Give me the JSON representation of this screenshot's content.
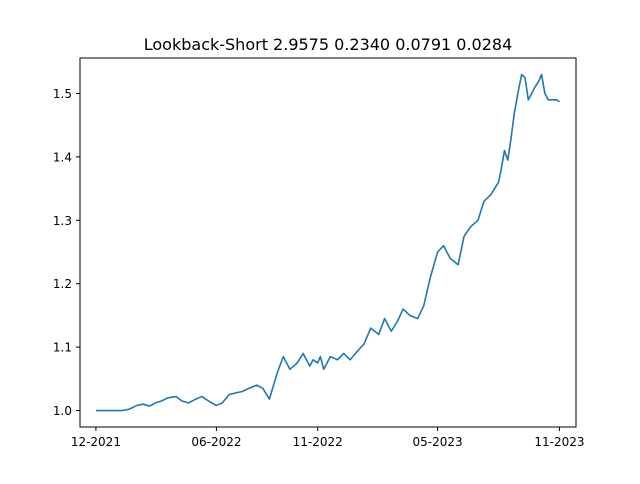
{
  "chart_data": {
    "type": "line",
    "title": "Lookback-Short  2.9575 0.2340 0.0791 0.0284",
    "xlabel": "",
    "ylabel": "",
    "x_ticks": [
      "12-2021",
      "06-2022",
      "11-2022",
      "05-2023",
      "11-2023"
    ],
    "x_tick_dates": [
      "2021-12-01",
      "2022-06-01",
      "2022-11-01",
      "2023-05-01",
      "2023-11-01"
    ],
    "y_ticks": [
      1.0,
      1.1,
      1.2,
      1.3,
      1.4,
      1.5
    ],
    "xlim": [
      "2021-11-07",
      "2023-11-26"
    ],
    "ylim": [
      0.974,
      1.556
    ],
    "grid": false,
    "line_color": "#1f77b4",
    "series": [
      {
        "x": [
          "2021-12-01",
          "2021-12-15",
          "2022-01-01",
          "2022-01-10",
          "2022-01-20",
          "2022-02-01",
          "2022-02-10",
          "2022-02-20",
          "2022-03-01",
          "2022-03-10",
          "2022-03-20",
          "2022-04-01",
          "2022-04-10",
          "2022-04-20",
          "2022-05-01",
          "2022-05-10",
          "2022-05-20",
          "2022-06-01",
          "2022-06-10",
          "2022-06-20",
          "2022-07-01",
          "2022-07-10",
          "2022-07-20",
          "2022-08-01",
          "2022-08-10",
          "2022-08-20",
          "2022-09-01",
          "2022-09-10",
          "2022-09-20",
          "2022-10-01",
          "2022-10-10",
          "2022-10-20",
          "2022-10-25",
          "2022-11-01",
          "2022-11-05",
          "2022-11-10",
          "2022-11-15",
          "2022-11-20",
          "2022-12-01",
          "2022-12-10",
          "2022-12-20",
          "2023-01-01",
          "2023-01-10",
          "2023-01-20",
          "2023-02-01",
          "2023-02-10",
          "2023-02-20",
          "2023-03-01",
          "2023-03-10",
          "2023-03-20",
          "2023-04-01",
          "2023-04-10",
          "2023-04-20",
          "2023-05-01",
          "2023-05-10",
          "2023-05-20",
          "2023-06-01",
          "2023-06-10",
          "2023-06-20",
          "2023-07-01",
          "2023-07-10",
          "2023-07-20",
          "2023-08-01",
          "2023-08-05",
          "2023-08-10",
          "2023-08-15",
          "2023-08-20",
          "2023-08-25",
          "2023-09-01",
          "2023-09-05",
          "2023-09-10",
          "2023-09-15",
          "2023-09-20",
          "2023-09-25",
          "2023-10-01",
          "2023-10-05",
          "2023-10-10",
          "2023-10-15",
          "2023-10-20",
          "2023-10-25",
          "2023-10-28",
          "2023-11-01"
        ],
        "values": [
          1.0,
          1.0,
          1.0,
          1.0,
          1.002,
          1.008,
          1.01,
          1.007,
          1.012,
          1.015,
          1.02,
          1.022,
          1.015,
          1.012,
          1.018,
          1.022,
          1.015,
          1.008,
          1.012,
          1.025,
          1.028,
          1.03,
          1.035,
          1.04,
          1.035,
          1.018,
          1.06,
          1.085,
          1.065,
          1.075,
          1.09,
          1.07,
          1.08,
          1.075,
          1.085,
          1.065,
          1.075,
          1.085,
          1.08,
          1.09,
          1.08,
          1.095,
          1.105,
          1.13,
          1.12,
          1.145,
          1.125,
          1.14,
          1.16,
          1.15,
          1.145,
          1.165,
          1.21,
          1.25,
          1.26,
          1.24,
          1.23,
          1.275,
          1.29,
          1.3,
          1.33,
          1.34,
          1.36,
          1.38,
          1.41,
          1.395,
          1.43,
          1.47,
          1.51,
          1.53,
          1.525,
          1.49,
          1.5,
          1.51,
          1.52,
          1.53,
          1.5,
          1.49,
          1.49,
          1.49,
          1.49,
          1.487
        ]
      }
    ]
  }
}
